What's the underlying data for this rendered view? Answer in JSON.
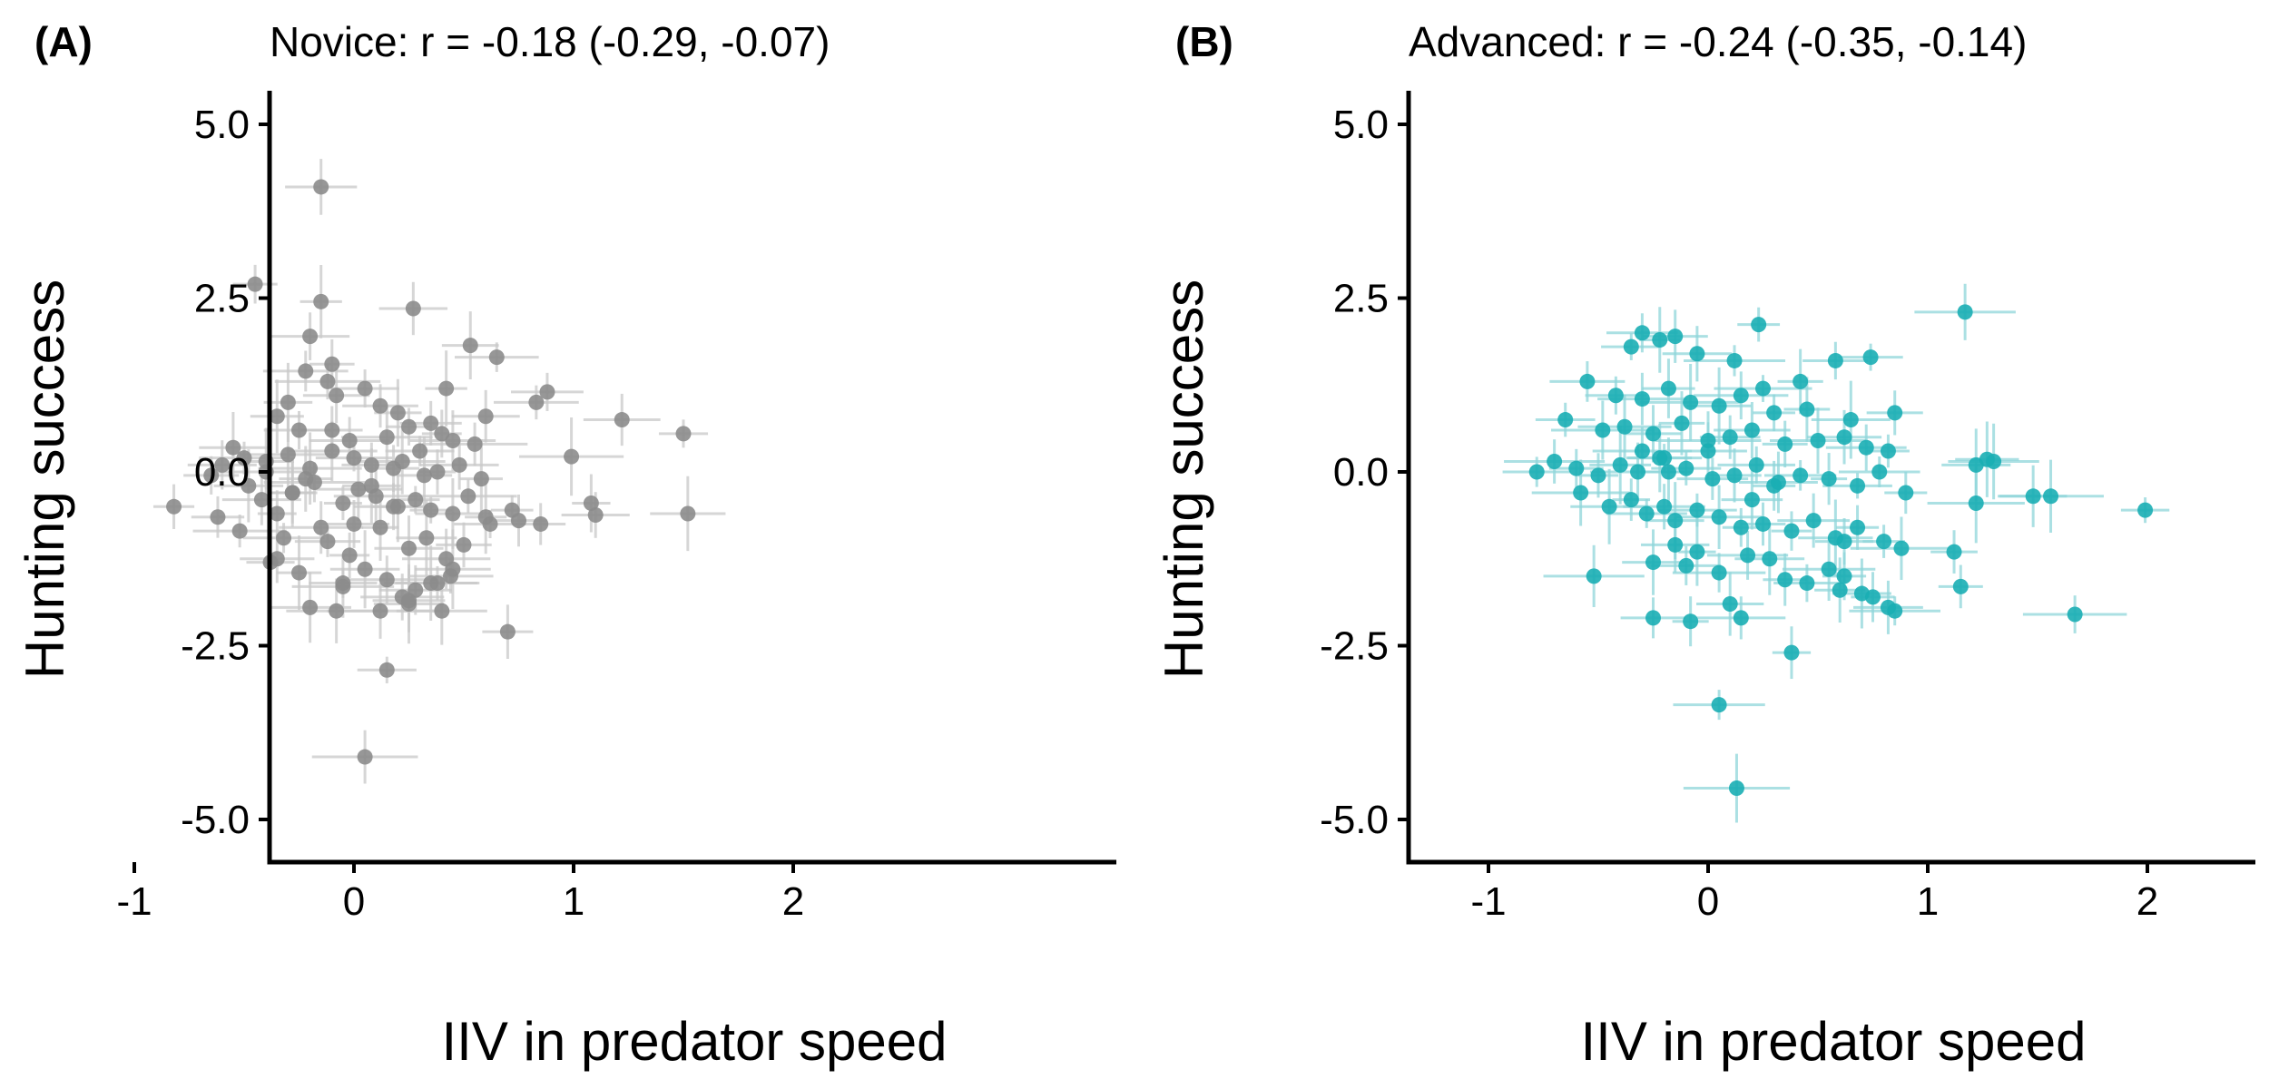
{
  "figure": {
    "panels": [
      {
        "letter": "(A)",
        "subtitle": "Novice: r = -0.18 (-0.29, -0.07)",
        "xlabel": "IIV in predator speed",
        "ylabel": "Hunting success",
        "point_color": "#8c8c8c",
        "errorbar_color": "#c8c8c8"
      },
      {
        "letter": "(B)",
        "subtitle": "Advanced: r = -0.24 (-0.35, -0.14)",
        "xlabel": "IIV in predator speed",
        "ylabel": "Hunting success",
        "point_color": "#1aaeb4",
        "errorbar_color": "#8fd5d9"
      }
    ]
  },
  "chart_data": [
    {
      "type": "scatter",
      "title": "Novice: r = -0.18 (-0.29, -0.07)",
      "xlabel": "IIV in predator speed",
      "ylabel": "Hunting success",
      "xlim": [
        -1.35,
        2.45
      ],
      "ylim": [
        -5.6,
        5.4
      ],
      "x_ticks": [
        -1,
        0,
        1,
        2
      ],
      "x_tick_labels": [
        "-1",
        "0",
        "1",
        "2"
      ],
      "y_ticks": [
        5.0,
        2.5,
        0.0,
        -2.5,
        -5.0
      ],
      "y_tick_labels": [
        "5.0",
        "2.5",
        "0.0",
        "-2.5",
        "-5.0"
      ],
      "grid": false,
      "error_bars": true,
      "x": [
        -0.15,
        -0.45,
        0.27,
        -0.15,
        -0.2,
        0.53,
        0.65,
        0.88,
        0.83,
        1.22,
        1.5,
        0.99,
        -0.1,
        -0.12,
        -0.08,
        -0.22,
        -0.3,
        0.05,
        0.12,
        0.2,
        0.35,
        0.42,
        -0.35,
        -0.25,
        -0.02,
        0.15,
        0.25,
        0.3,
        0.4,
        0.45,
        0.55,
        0.6,
        -0.55,
        -0.6,
        -0.65,
        -0.5,
        -0.4,
        -0.3,
        -0.2,
        -0.1,
        0.0,
        0.08,
        0.18,
        0.22,
        0.32,
        0.38,
        0.48,
        0.58,
        -0.48,
        -0.42,
        -0.28,
        -0.18,
        -0.05,
        0.02,
        0.1,
        0.2,
        0.28,
        0.35,
        0.45,
        0.52,
        0.62,
        0.75,
        -0.82,
        -0.62,
        -0.52,
        -0.38,
        -0.32,
        -0.12,
        0.0,
        0.12,
        0.25,
        0.33,
        0.42,
        0.5,
        0.6,
        0.72,
        0.85,
        1.08,
        1.1,
        1.52,
        -0.35,
        -0.25,
        -0.15,
        -0.05,
        0.05,
        0.15,
        0.25,
        0.35,
        0.45,
        -0.2,
        -0.05,
        0.12,
        0.22,
        0.4,
        0.28,
        -0.08,
        -0.02,
        0.25,
        0.38,
        0.44,
        0.7,
        0.15,
        0.05,
        -0.35,
        -0.28,
        -0.22,
        0.08,
        0.18,
        -0.4,
        -0.1
      ],
      "y": [
        4.1,
        2.7,
        2.35,
        2.45,
        1.95,
        1.82,
        1.65,
        1.15,
        1.0,
        0.75,
        0.55,
        0.22,
        1.55,
        1.3,
        1.1,
        1.45,
        1.0,
        1.2,
        0.95,
        0.85,
        0.7,
        1.2,
        0.8,
        0.6,
        0.45,
        0.5,
        0.65,
        0.3,
        0.55,
        0.45,
        0.4,
        0.8,
        0.35,
        0.1,
        -0.05,
        0.2,
        0.15,
        0.25,
        0.05,
        0.3,
        0.2,
        0.1,
        0.05,
        0.15,
        -0.05,
        0.0,
        0.1,
        -0.1,
        -0.2,
        -0.4,
        -0.3,
        -0.15,
        -0.45,
        -0.25,
        -0.35,
        -0.5,
        -0.4,
        -0.55,
        -0.6,
        -0.35,
        -0.75,
        -0.7,
        -0.5,
        -0.65,
        -0.85,
        -1.3,
        -0.95,
        -1.0,
        -0.75,
        -0.8,
        -1.1,
        -0.95,
        -1.25,
        -1.05,
        -0.65,
        -0.55,
        -0.75,
        -0.45,
        -0.62,
        -0.6,
        -1.25,
        -1.45,
        -0.8,
        -1.65,
        -1.4,
        -1.55,
        -1.85,
        -1.6,
        -1.4,
        -1.95,
        -1.6,
        -2.0,
        -1.8,
        -2.0,
        -1.7,
        -2.0,
        -1.2,
        -1.9,
        -1.6,
        -1.5,
        -2.3,
        -2.85,
        -4.1,
        -0.6,
        -0.3,
        -0.1,
        -0.2,
        -0.5,
        0.0,
        0.6
      ]
    },
    {
      "type": "scatter",
      "title": "Advanced: r = -0.24 (-0.35, -0.14)",
      "xlabel": "IIV in predator speed",
      "ylabel": "Hunting success",
      "xlim": [
        -1.35,
        2.45
      ],
      "ylim": [
        -5.6,
        5.4
      ],
      "x_ticks": [
        -1,
        0,
        1,
        2
      ],
      "x_tick_labels": [
        "-1",
        "0",
        "1",
        "2"
      ],
      "y_ticks": [
        5.0,
        2.5,
        0.0,
        -2.5,
        -5.0
      ],
      "y_tick_labels": [
        "5.0",
        "2.5",
        "0.0",
        "-2.5",
        "-5.0"
      ],
      "grid": false,
      "error_bars": true,
      "x": [
        1.17,
        0.23,
        -0.3,
        -0.15,
        -0.35,
        -0.22,
        -0.05,
        0.12,
        0.58,
        0.74,
        0.42,
        0.25,
        -0.55,
        -0.42,
        -0.3,
        -0.18,
        -0.08,
        0.05,
        0.15,
        0.3,
        0.45,
        0.65,
        0.85,
        -0.65,
        -0.48,
        -0.38,
        -0.25,
        -0.12,
        0.0,
        0.1,
        0.2,
        0.35,
        0.5,
        0.62,
        0.72,
        0.82,
        1.27,
        1.3,
        1.22,
        -0.78,
        -0.7,
        -0.6,
        -0.5,
        -0.4,
        -0.32,
        -0.2,
        -0.1,
        0.02,
        0.12,
        0.22,
        0.32,
        0.42,
        0.55,
        0.68,
        0.78,
        0.9,
        1.48,
        1.56,
        1.99,
        1.22,
        -0.58,
        -0.45,
        -0.35,
        -0.28,
        -0.2,
        -0.15,
        -0.05,
        0.05,
        0.15,
        0.25,
        0.38,
        0.48,
        0.58,
        0.68,
        0.8,
        1.12,
        1.15,
        0.62,
        0.7,
        0.82,
        -0.52,
        -0.25,
        -0.1,
        0.05,
        0.18,
        0.28,
        0.35,
        0.45,
        0.55,
        0.6,
        0.75,
        0.85,
        -0.25,
        -0.08,
        0.15,
        0.38,
        -0.15,
        -0.05,
        0.1,
        0.05,
        0.13,
        1.67,
        0.62,
        0.88,
        -0.3,
        -0.22,
        -0.18,
        0.0,
        0.2,
        0.3
      ],
      "y": [
        2.3,
        2.12,
        2.0,
        1.95,
        1.8,
        1.9,
        1.7,
        1.6,
        1.6,
        1.65,
        1.3,
        1.2,
        1.3,
        1.1,
        1.05,
        1.2,
        1.0,
        0.95,
        1.1,
        0.85,
        0.9,
        0.75,
        0.85,
        0.75,
        0.6,
        0.65,
        0.55,
        0.7,
        0.45,
        0.5,
        0.6,
        0.4,
        0.45,
        0.5,
        0.35,
        0.3,
        0.18,
        0.15,
        0.1,
        0.0,
        0.15,
        0.05,
        -0.05,
        0.1,
        0.0,
        0.2,
        0.05,
        -0.1,
        -0.05,
        0.1,
        -0.15,
        -0.05,
        -0.1,
        -0.2,
        0.0,
        -0.3,
        -0.35,
        -0.35,
        -0.55,
        -0.45,
        -0.3,
        -0.5,
        -0.4,
        -0.6,
        -0.5,
        -0.7,
        -0.55,
        -0.65,
        -0.8,
        -0.75,
        -0.85,
        -0.7,
        -0.95,
        -0.8,
        -1.0,
        -1.15,
        -1.65,
        -1.5,
        -1.75,
        -1.95,
        -1.5,
        -1.3,
        -1.35,
        -1.45,
        -1.2,
        -1.25,
        -1.55,
        -1.6,
        -1.4,
        -1.7,
        -1.8,
        -2.0,
        -2.1,
        -2.15,
        -2.1,
        -2.6,
        -1.05,
        -1.15,
        -1.9,
        -3.35,
        -4.55,
        -2.05,
        -1.0,
        -1.1,
        0.3,
        0.2,
        0.0,
        0.3,
        -0.4,
        -0.2
      ]
    }
  ]
}
